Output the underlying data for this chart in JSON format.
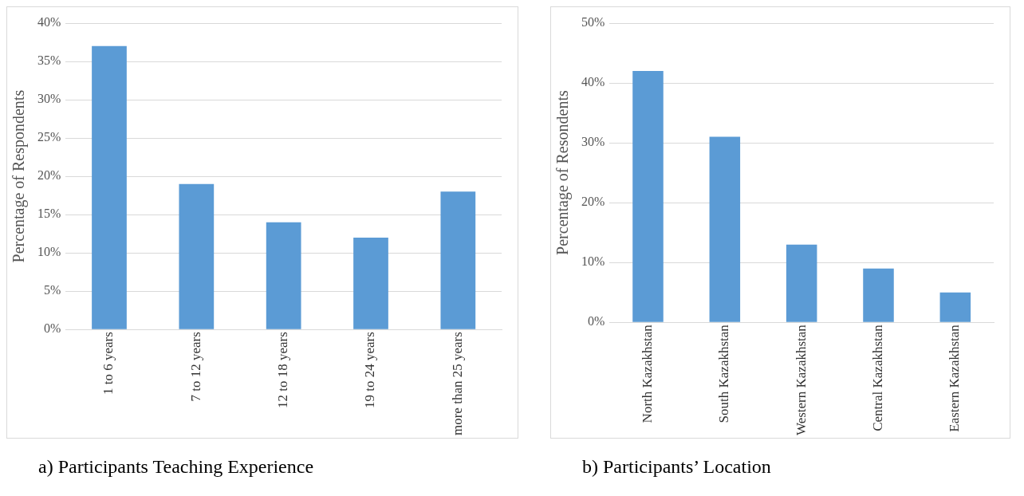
{
  "chart_data": [
    {
      "type": "bar",
      "title": "a)   Participants Teaching Experience",
      "ylabel": "Percentage of Respondents",
      "categories": [
        "1 to 6 years",
        "7 to 12 years",
        "12 to 18 years",
        "19 to 24 years",
        "more than 25 years"
      ],
      "values": [
        37,
        19,
        14,
        12,
        18
      ],
      "color": "#5b9bd5",
      "ylim": [
        0,
        40
      ],
      "yticks": [
        {
          "value": 0,
          "label": "0%"
        },
        {
          "value": 5,
          "label": "5%"
        },
        {
          "value": 10,
          "label": "10%"
        },
        {
          "value": 15,
          "label": "15%"
        },
        {
          "value": 20,
          "label": "20%"
        },
        {
          "value": 25,
          "label": "25%"
        },
        {
          "value": 30,
          "label": "30%"
        },
        {
          "value": 35,
          "label": "35%"
        },
        {
          "value": 40,
          "label": "40%"
        }
      ],
      "grid": "y",
      "legend": false
    },
    {
      "type": "bar",
      "title": "b) Participants’ Location",
      "ylabel": "Percentage of Resondents",
      "categories": [
        "North Kazakhstan",
        "South Kazakhstan",
        "Western Kazakhstan",
        "Central Kazakhstan",
        "Eastern Kazakhstan"
      ],
      "values": [
        42,
        31,
        13,
        9,
        5
      ],
      "color": "#5b9bd5",
      "ylim": [
        0,
        50
      ],
      "yticks": [
        {
          "value": 0,
          "label": "0%"
        },
        {
          "value": 10,
          "label": "10%"
        },
        {
          "value": 20,
          "label": "20%"
        },
        {
          "value": 30,
          "label": "30%"
        },
        {
          "value": 40,
          "label": "40%"
        },
        {
          "value": 50,
          "label": "50%"
        }
      ],
      "grid": "y",
      "legend": false
    }
  ]
}
